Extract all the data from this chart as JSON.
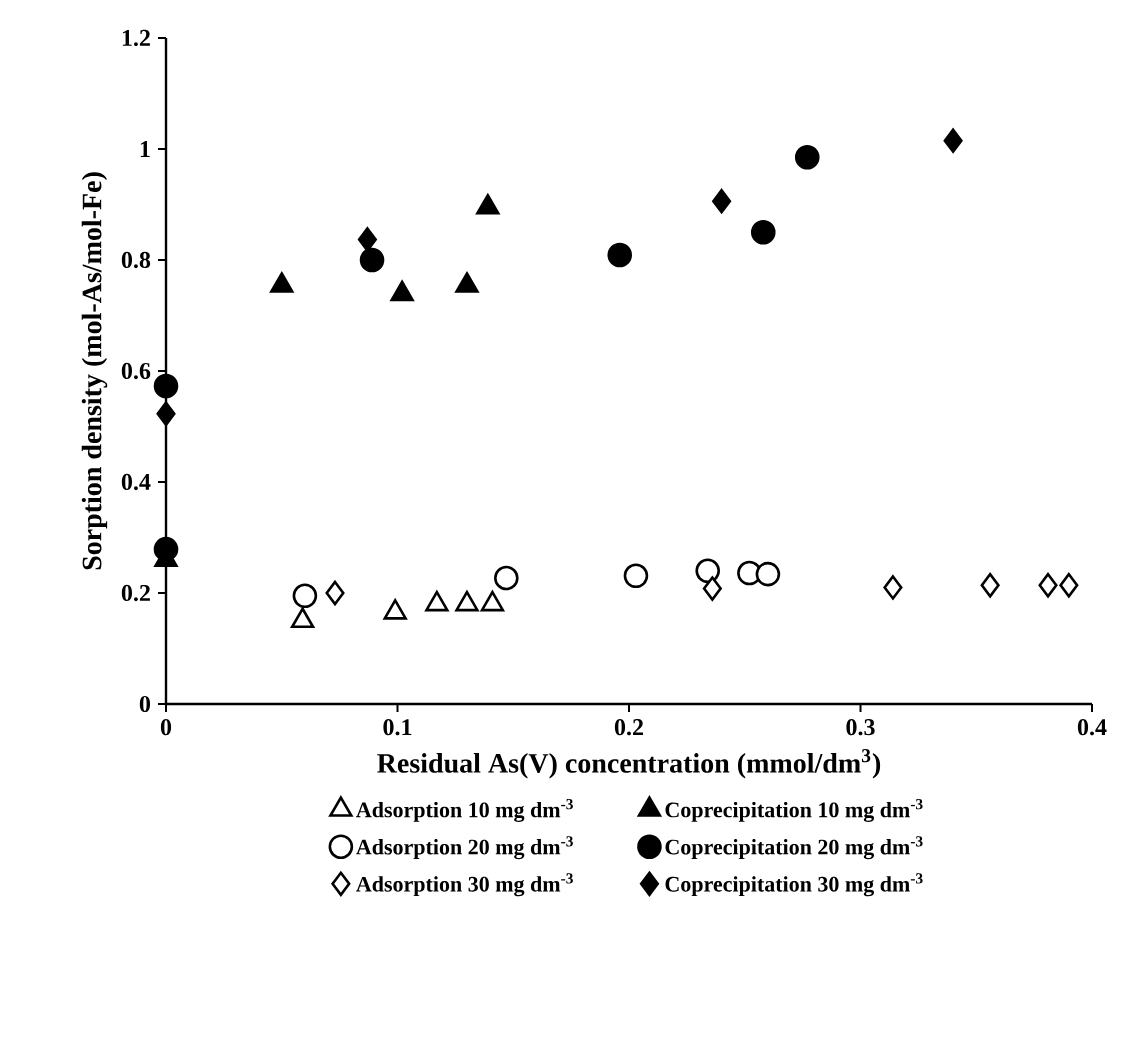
{
  "chart_data": {
    "type": "scatter",
    "xlabel": "Residual As(V) concentration (mmol/dm$^{3}$)",
    "ylabel": "Sorption density (mol-As/mol-Fe)",
    "xlim": [
      0,
      0.4
    ],
    "ylim": [
      0,
      1.2
    ],
    "xticks": [
      0,
      0.1,
      0.2,
      0.3,
      0.4
    ],
    "yticks": [
      0,
      0.2,
      0.4,
      0.6,
      0.8,
      1,
      1.2
    ],
    "grid": false,
    "legend": "bottom",
    "series": [
      {
        "name": "Adsorption 10 mg dm$^{-3}$",
        "color": "#ffffff",
        "marker": "triangle",
        "x": [
          0.059,
          0.099,
          0.117,
          0.13,
          0.141
        ],
        "values": [
          0.15,
          0.165,
          0.18,
          0.18,
          0.18
        ]
      },
      {
        "name": "Coprecipitation 10 mg dm$^{-3}$",
        "color": "#000000",
        "marker": "triangle",
        "x": [
          0,
          0.05,
          0.102,
          0.13,
          0.139
        ],
        "values": [
          0.26,
          0.754,
          0.739,
          0.754,
          0.895
        ]
      },
      {
        "name": "Adsorption 20 mg dm$^{-3}$",
        "color": "#ffffff",
        "marker": "circle",
        "x": [
          0.06,
          0.147,
          0.203,
          0.234,
          0.252,
          0.26
        ],
        "values": [
          0.195,
          0.227,
          0.231,
          0.24,
          0.236,
          0.234
        ]
      },
      {
        "name": "Coprecipitation 20 mg dm$^{-3}$",
        "color": "#000000",
        "marker": "circle",
        "x": [
          0,
          0,
          0.089,
          0.196,
          0.258,
          0.277
        ],
        "values": [
          0.279,
          0.573,
          0.8,
          0.809,
          0.85,
          0.985
        ]
      },
      {
        "name": "Adsorption 30 mg dm$^{-3}$",
        "color": "#ffffff",
        "marker": "diamond",
        "x": [
          0.073,
          0.236,
          0.314,
          0.356,
          0.381,
          0.39
        ],
        "values": [
          0.2,
          0.208,
          0.21,
          0.214,
          0.214,
          0.214
        ]
      },
      {
        "name": "Coprecipitation 30 mg dm$^{-3}$",
        "color": "#000000",
        "marker": "diamond",
        "x": [
          0,
          0.087,
          0.24,
          0.34
        ],
        "values": [
          0.523,
          0.837,
          0.906,
          1.015
        ]
      }
    ]
  }
}
